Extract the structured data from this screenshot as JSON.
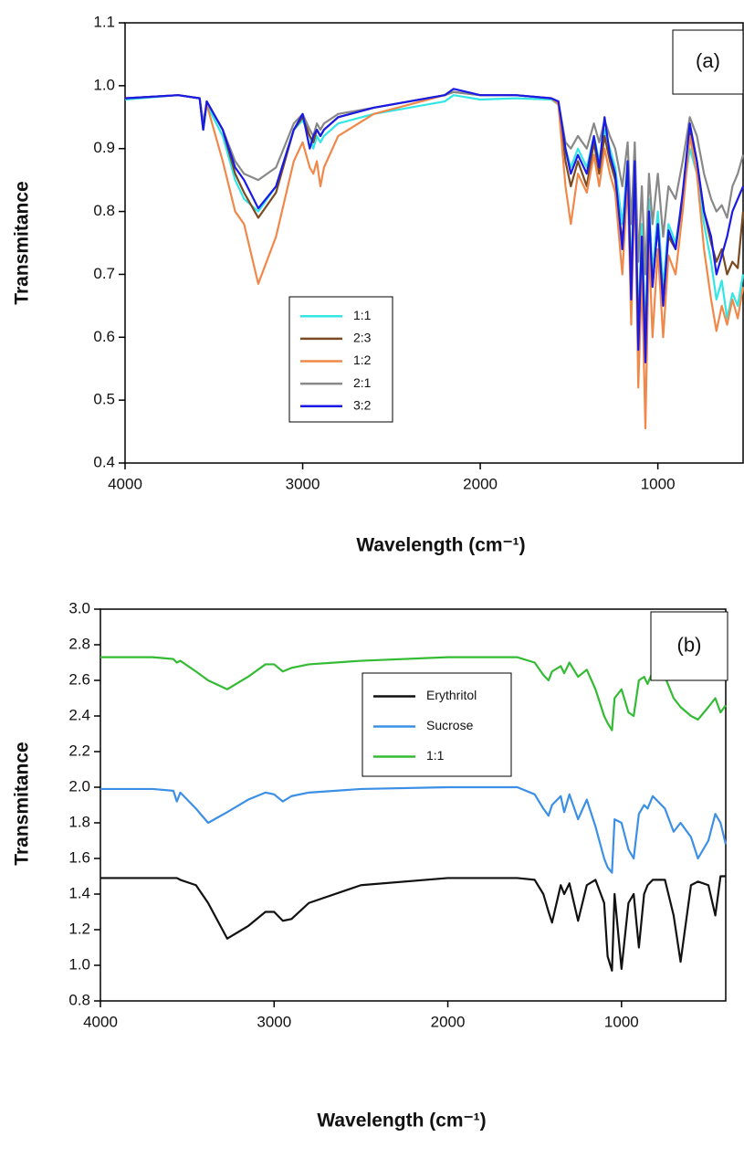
{
  "chart_data": [
    {
      "type": "line",
      "annotation": "(a)",
      "x_label": "Wavelength (cm⁻¹)",
      "y_label": "Transmitance",
      "xlim": [
        4000,
        520
      ],
      "ylim": [
        0.4,
        1.1
      ],
      "xticks": [
        4000,
        3000,
        2000,
        1000
      ],
      "yticks": [
        0.4,
        0.5,
        0.6,
        0.7,
        0.8,
        0.9,
        {
          "value": 1,
          "label": "1.0"
        },
        1.1
      ],
      "grid": false,
      "x": [
        4000,
        3700,
        3580,
        3560,
        3540,
        3450,
        3380,
        3330,
        3250,
        3150,
        3050,
        3000,
        2960,
        2940,
        2920,
        2900,
        2880,
        2800,
        2600,
        2400,
        2200,
        2150,
        2000,
        1800,
        1600,
        1560,
        1520,
        1490,
        1450,
        1400,
        1360,
        1330,
        1300,
        1270,
        1240,
        1200,
        1170,
        1150,
        1130,
        1110,
        1090,
        1070,
        1050,
        1030,
        1000,
        970,
        940,
        900,
        860,
        820,
        780,
        740,
        700,
        670,
        640,
        610,
        580,
        550,
        520
      ],
      "series": [
        {
          "name": "1:1",
          "color": "#33e6e6",
          "values": [
            0.978,
            0.985,
            0.98,
            0.93,
            0.97,
            0.92,
            0.85,
            0.82,
            0.8,
            0.84,
            0.93,
            0.945,
            0.92,
            0.9,
            0.92,
            0.91,
            0.92,
            0.94,
            0.955,
            0.965,
            0.975,
            0.985,
            0.978,
            0.98,
            0.978,
            0.97,
            0.9,
            0.87,
            0.9,
            0.87,
            0.92,
            0.88,
            0.93,
            0.9,
            0.87,
            0.78,
            0.88,
            0.7,
            0.88,
            0.62,
            0.78,
            0.6,
            0.82,
            0.7,
            0.8,
            0.68,
            0.78,
            0.75,
            0.82,
            0.9,
            0.86,
            0.78,
            0.72,
            0.66,
            0.69,
            0.63,
            0.67,
            0.65,
            0.7
          ]
        },
        {
          "name": "2:3",
          "color": "#7a4a22",
          "values": [
            0.98,
            0.985,
            0.98,
            0.93,
            0.975,
            0.93,
            0.86,
            0.83,
            0.79,
            0.83,
            0.93,
            0.95,
            0.92,
            0.91,
            0.93,
            0.92,
            0.93,
            0.95,
            0.965,
            0.975,
            0.985,
            0.99,
            0.985,
            0.985,
            0.98,
            0.975,
            0.88,
            0.84,
            0.88,
            0.84,
            0.91,
            0.86,
            0.92,
            0.88,
            0.85,
            0.75,
            0.87,
            0.68,
            0.87,
            0.6,
            0.76,
            0.58,
            0.8,
            0.68,
            0.78,
            0.66,
            0.76,
            0.74,
            0.82,
            0.93,
            0.88,
            0.8,
            0.75,
            0.72,
            0.74,
            0.7,
            0.72,
            0.71,
            0.8
          ]
        },
        {
          "name": "1:2",
          "color": "#f0884a",
          "values": [
            0.98,
            0.985,
            0.98,
            0.94,
            0.97,
            0.88,
            0.8,
            0.78,
            0.685,
            0.76,
            0.88,
            0.91,
            0.87,
            0.86,
            0.88,
            0.84,
            0.87,
            0.92,
            0.955,
            0.97,
            0.985,
            0.99,
            0.985,
            0.985,
            0.98,
            0.97,
            0.84,
            0.78,
            0.86,
            0.83,
            0.89,
            0.84,
            0.9,
            0.86,
            0.83,
            0.7,
            0.85,
            0.62,
            0.86,
            0.52,
            0.7,
            0.455,
            0.75,
            0.6,
            0.74,
            0.6,
            0.73,
            0.7,
            0.8,
            0.92,
            0.86,
            0.74,
            0.66,
            0.61,
            0.65,
            0.62,
            0.66,
            0.63,
            0.68
          ]
        },
        {
          "name": "2:1",
          "color": "#888888",
          "values": [
            0.98,
            0.985,
            0.98,
            0.94,
            0.975,
            0.93,
            0.88,
            0.86,
            0.85,
            0.87,
            0.94,
            0.955,
            0.93,
            0.92,
            0.94,
            0.93,
            0.94,
            0.955,
            0.965,
            0.975,
            0.985,
            0.99,
            0.985,
            0.985,
            0.98,
            0.975,
            0.91,
            0.9,
            0.92,
            0.9,
            0.94,
            0.91,
            0.945,
            0.92,
            0.9,
            0.84,
            0.91,
            0.78,
            0.91,
            0.72,
            0.84,
            0.7,
            0.86,
            0.78,
            0.86,
            0.76,
            0.84,
            0.82,
            0.88,
            0.95,
            0.92,
            0.86,
            0.82,
            0.8,
            0.81,
            0.79,
            0.84,
            0.86,
            0.89
          ]
        },
        {
          "name": "3:2",
          "color": "#1a1ae6",
          "values": [
            0.98,
            0.985,
            0.98,
            0.93,
            0.975,
            0.93,
            0.87,
            0.85,
            0.805,
            0.84,
            0.93,
            0.955,
            0.9,
            0.92,
            0.93,
            0.92,
            0.93,
            0.95,
            0.965,
            0.975,
            0.985,
            0.995,
            0.985,
            0.985,
            0.98,
            0.975,
            0.9,
            0.86,
            0.89,
            0.86,
            0.92,
            0.87,
            0.95,
            0.89,
            0.86,
            0.74,
            0.88,
            0.66,
            0.88,
            0.58,
            0.76,
            0.56,
            0.8,
            0.68,
            0.78,
            0.65,
            0.77,
            0.74,
            0.83,
            0.94,
            0.88,
            0.8,
            0.76,
            0.7,
            0.73,
            0.76,
            0.8,
            0.82,
            0.84
          ]
        }
      ]
    },
    {
      "type": "line",
      "annotation": "(b)",
      "x_label": "Wavelength (cm⁻¹)",
      "y_label": "Transmitance",
      "xlim": [
        4000,
        400
      ],
      "ylim": [
        0.8,
        3.0
      ],
      "xticks": [
        4000,
        3000,
        2000,
        1000
      ],
      "yticks": [
        0.8,
        {
          "value": 1,
          "label": "1.0"
        },
        1.2,
        1.4,
        1.6,
        1.8,
        {
          "value": 2,
          "label": "2.0"
        },
        2.2,
        2.4,
        2.6,
        2.8,
        {
          "value": 3,
          "label": "3.0"
        }
      ],
      "grid": false,
      "x": [
        4000,
        3700,
        3580,
        3560,
        3540,
        3450,
        3380,
        3270,
        3150,
        3050,
        3000,
        2950,
        2900,
        2800,
        2500,
        2000,
        1600,
        1500,
        1450,
        1420,
        1400,
        1350,
        1330,
        1300,
        1250,
        1200,
        1150,
        1100,
        1080,
        1055,
        1040,
        1000,
        960,
        930,
        900,
        870,
        850,
        820,
        750,
        700,
        660,
        600,
        560,
        500,
        460,
        430,
        400
      ],
      "series": [
        {
          "name": "Erythritol",
          "color": "#111111",
          "values": [
            1.49,
            1.49,
            1.49,
            1.49,
            1.48,
            1.45,
            1.35,
            1.15,
            1.22,
            1.3,
            1.3,
            1.25,
            1.26,
            1.35,
            1.45,
            1.49,
            1.49,
            1.48,
            1.4,
            1.3,
            1.24,
            1.45,
            1.4,
            1.46,
            1.25,
            1.45,
            1.48,
            1.35,
            1.05,
            0.97,
            1.4,
            0.98,
            1.35,
            1.4,
            1.1,
            1.4,
            1.45,
            1.48,
            1.48,
            1.28,
            1.02,
            1.45,
            1.47,
            1.45,
            1.28,
            1.5,
            1.5
          ]
        },
        {
          "name": "Sucrose",
          "color": "#3c8fe6",
          "values": [
            1.99,
            1.99,
            1.98,
            1.92,
            1.97,
            1.88,
            1.8,
            1.86,
            1.93,
            1.97,
            1.96,
            1.92,
            1.95,
            1.97,
            1.99,
            2.0,
            2.0,
            1.96,
            1.88,
            1.84,
            1.9,
            1.95,
            1.86,
            1.96,
            1.82,
            1.93,
            1.78,
            1.6,
            1.55,
            1.52,
            1.82,
            1.8,
            1.65,
            1.6,
            1.85,
            1.9,
            1.88,
            1.95,
            1.88,
            1.75,
            1.8,
            1.72,
            1.6,
            1.7,
            1.85,
            1.8,
            1.68
          ]
        },
        {
          "name": "1:1",
          "color": "#33bb33",
          "values": [
            2.73,
            2.73,
            2.72,
            2.7,
            2.71,
            2.65,
            2.6,
            2.55,
            2.62,
            2.69,
            2.69,
            2.65,
            2.67,
            2.69,
            2.71,
            2.73,
            2.73,
            2.7,
            2.63,
            2.6,
            2.65,
            2.68,
            2.64,
            2.7,
            2.62,
            2.66,
            2.55,
            2.4,
            2.36,
            2.32,
            2.5,
            2.55,
            2.42,
            2.4,
            2.6,
            2.62,
            2.58,
            2.65,
            2.62,
            2.5,
            2.45,
            2.4,
            2.38,
            2.45,
            2.5,
            2.42,
            2.46
          ]
        }
      ]
    }
  ]
}
